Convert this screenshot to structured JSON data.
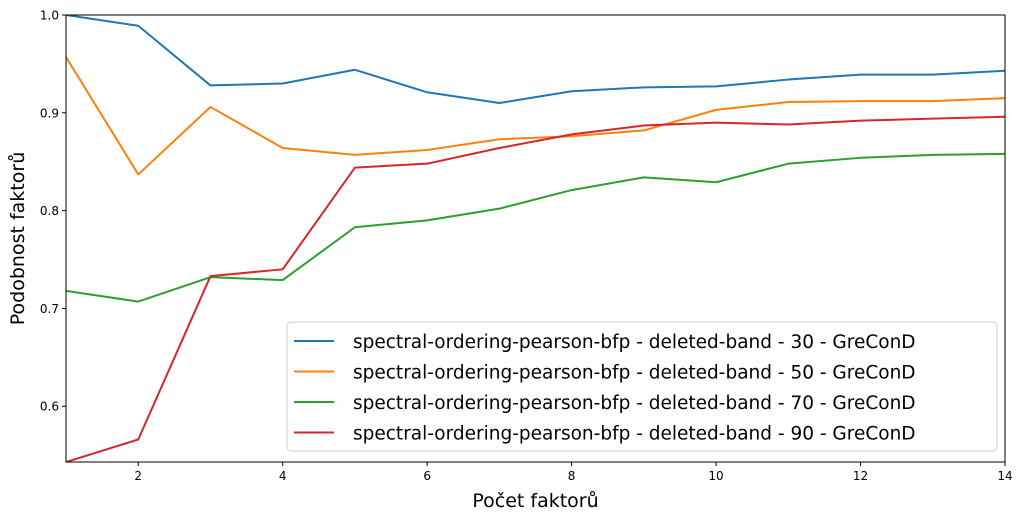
{
  "chart_data": {
    "type": "line",
    "xlabel": "Počet faktorů",
    "ylabel": "Podobnost faktorů",
    "xlim": [
      1,
      14
    ],
    "ylim": [
      0.543,
      1.0
    ],
    "xticks": [
      2,
      4,
      6,
      8,
      10,
      12,
      14
    ],
    "xtick_labels": [
      "2",
      "4",
      "6",
      "8",
      "10",
      "12",
      "14"
    ],
    "yticks": [
      0.6,
      0.7,
      0.8,
      0.9,
      1.0
    ],
    "ytick_labels": [
      "0.6",
      "0.7",
      "0.8",
      "0.9",
      "1.0"
    ],
    "grid": false,
    "legend_position": "bottom-right",
    "x": [
      1,
      2,
      3,
      4,
      5,
      6,
      7,
      8,
      9,
      10,
      11,
      12,
      13,
      14
    ],
    "series": [
      {
        "name": "spectral-ordering-pearson-bfp - deleted-band - 30 - GreConD",
        "color": "#1f77b4",
        "values": [
          1.0,
          0.989,
          0.928,
          0.93,
          0.944,
          0.921,
          0.91,
          0.922,
          0.926,
          0.927,
          0.934,
          0.939,
          0.939,
          0.943
        ]
      },
      {
        "name": "spectral-ordering-pearson-bfp - deleted-band - 50 - GreConD",
        "color": "#ff7f0e",
        "values": [
          0.957,
          0.837,
          0.906,
          0.864,
          0.857,
          0.862,
          0.873,
          0.876,
          0.882,
          0.903,
          0.911,
          0.912,
          0.912,
          0.915
        ]
      },
      {
        "name": "spectral-ordering-pearson-bfp - deleted-band - 70 - GreConD",
        "color": "#2ca02c",
        "values": [
          0.718,
          0.707,
          0.732,
          0.729,
          0.783,
          0.79,
          0.802,
          0.821,
          0.834,
          0.829,
          0.848,
          0.854,
          0.857,
          0.858
        ]
      },
      {
        "name": "spectral-ordering-pearson-bfp - deleted-band - 90 - GreConD",
        "color": "#d62728",
        "values": [
          0.543,
          0.566,
          0.733,
          0.74,
          0.844,
          0.848,
          0.864,
          0.878,
          0.887,
          0.89,
          0.888,
          0.892,
          0.894,
          0.896
        ]
      }
    ]
  }
}
